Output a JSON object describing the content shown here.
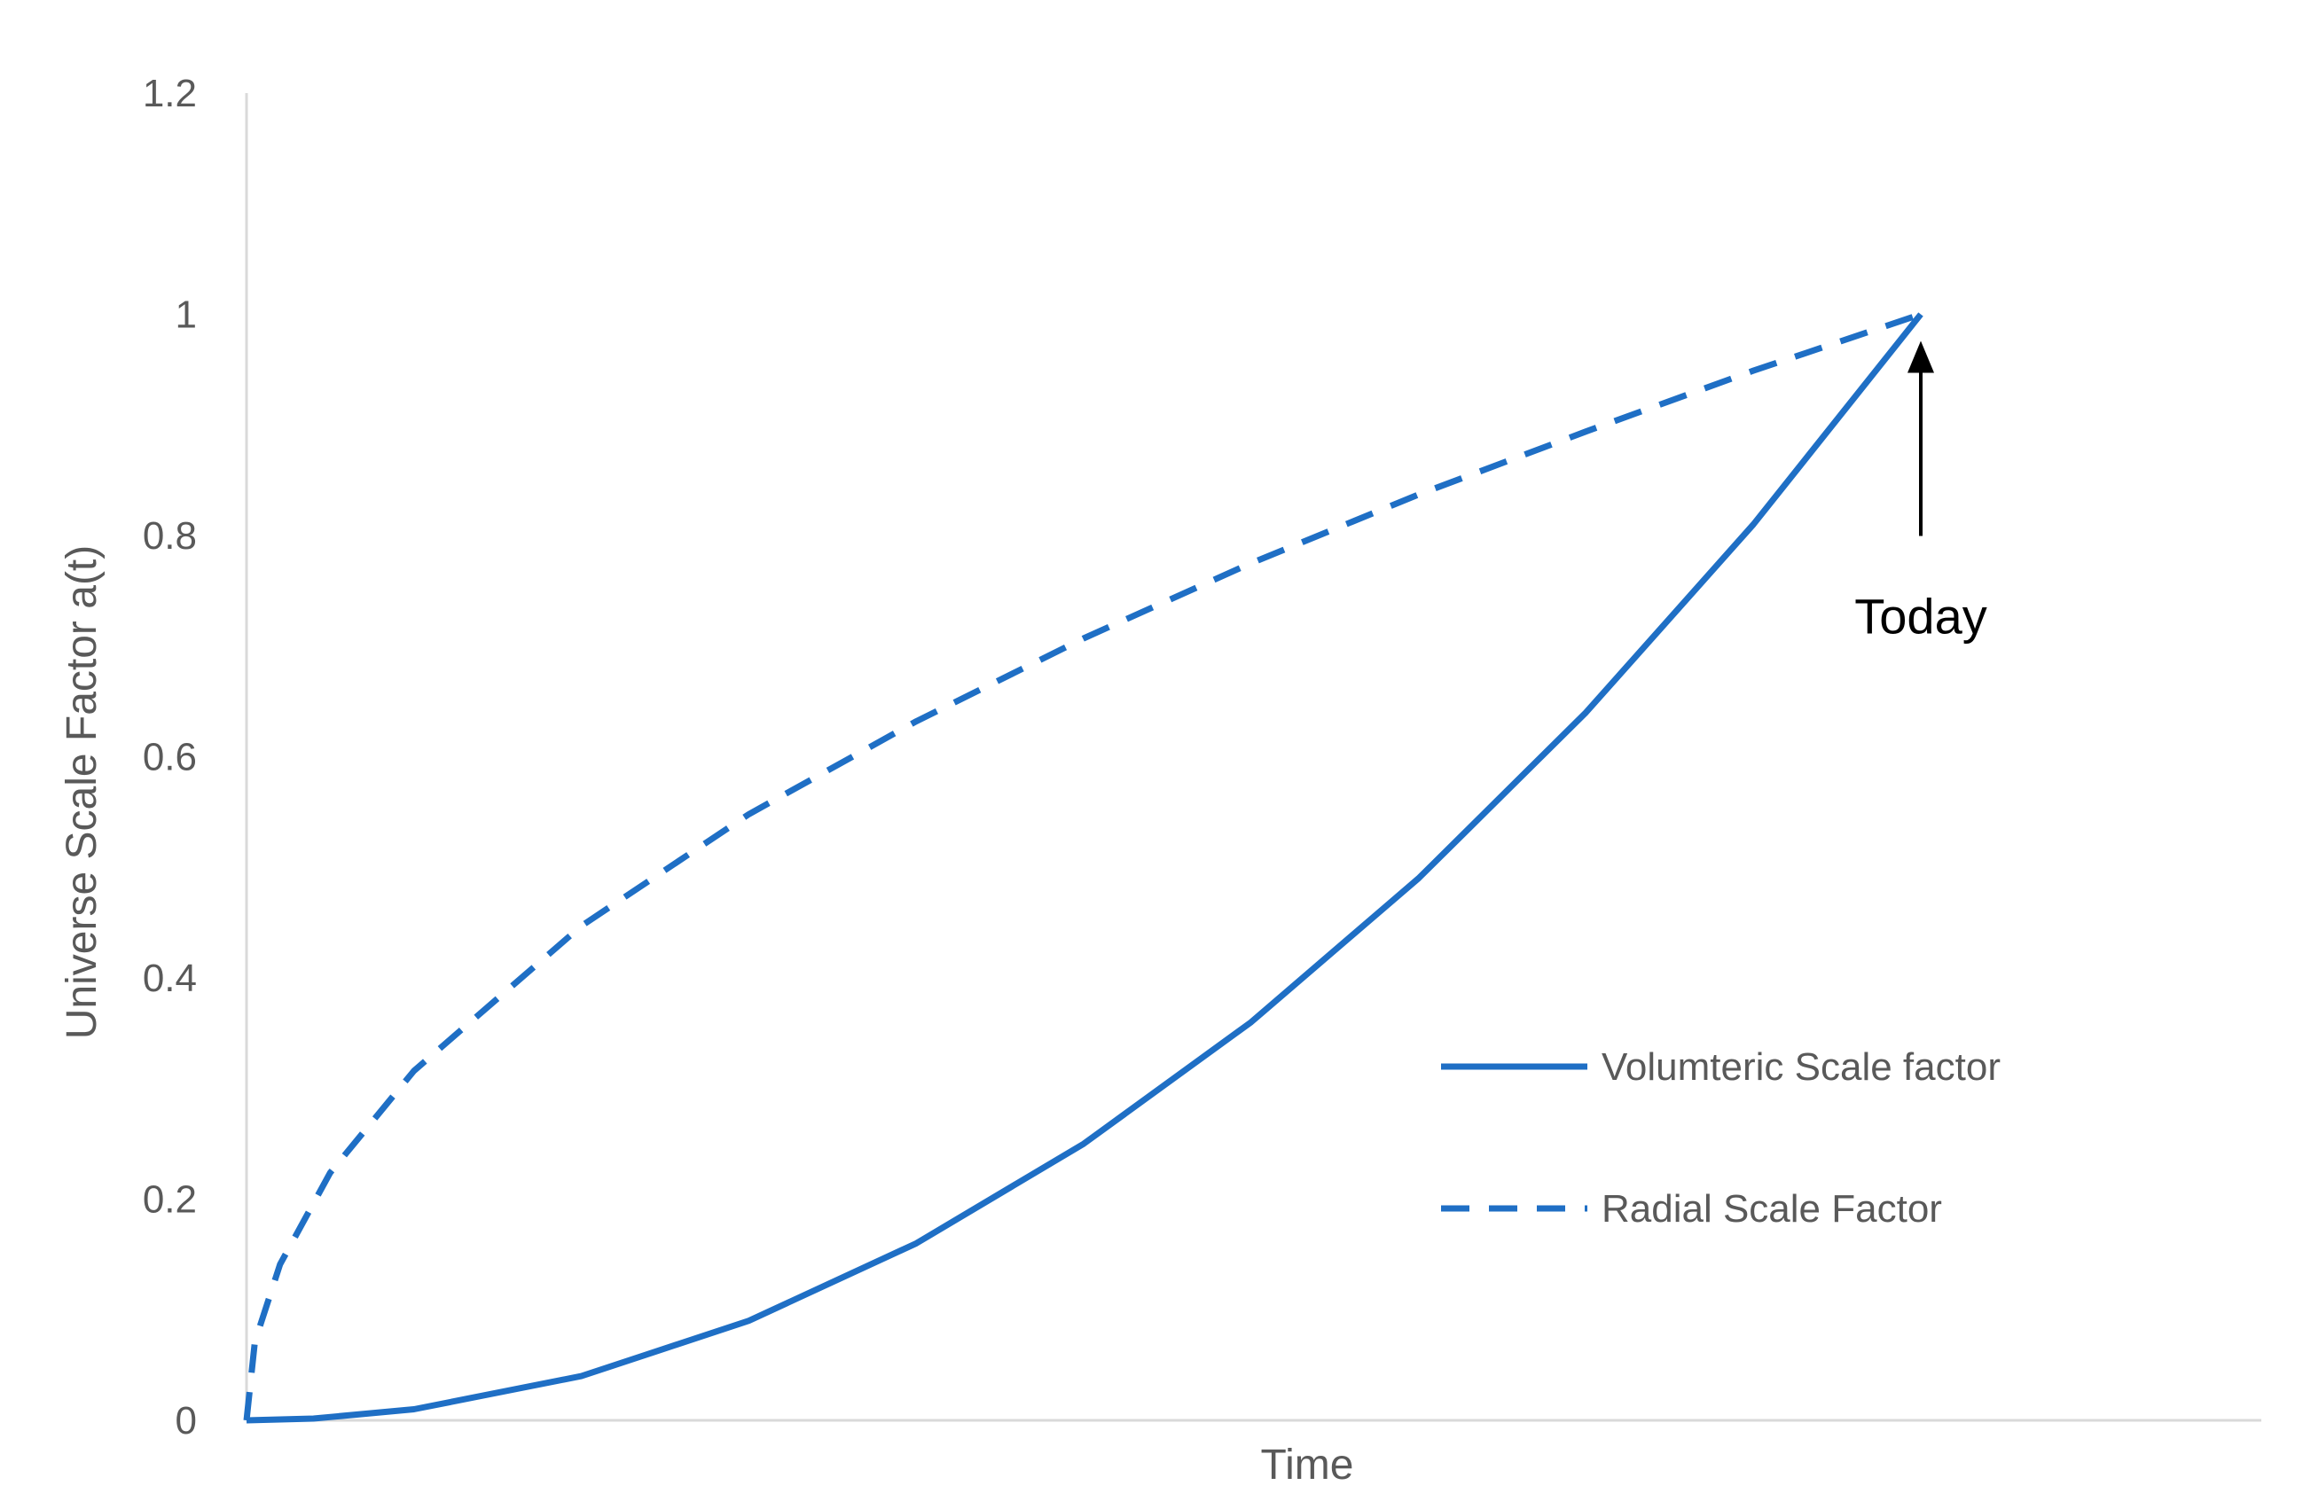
{
  "chart_data": {
    "type": "line",
    "title": "",
    "xlabel": "Time",
    "ylabel": "Universe Scale Factor a(t)",
    "x_range": [
      0,
      1.2
    ],
    "ylim": [
      0,
      1.2
    ],
    "yticks": [
      "0",
      "0.2",
      "0.4",
      "0.6",
      "0.8",
      "1",
      "1.2"
    ],
    "ytick_values": [
      0,
      0.2,
      0.4,
      0.6,
      0.8,
      1.0,
      1.2
    ],
    "grid": false,
    "legend_position": "right",
    "series": [
      {
        "name": "Volumteric Scale factor",
        "style": "solid",
        "color": "#1f6fc5",
        "x": [
          0,
          0.04,
          0.1,
          0.2,
          0.3,
          0.4,
          0.5,
          0.6,
          0.7,
          0.8,
          0.9,
          1.0
        ],
        "y": [
          0,
          0.0016,
          0.01,
          0.04,
          0.09,
          0.16,
          0.25,
          0.36,
          0.49,
          0.64,
          0.81,
          1.0
        ]
      },
      {
        "name": "Radial Scale Factor",
        "style": "dashed",
        "color": "#1f6fc5",
        "x": [
          0,
          0.005,
          0.02,
          0.05,
          0.1,
          0.2,
          0.3,
          0.4,
          0.5,
          0.6,
          0.7,
          0.8,
          0.9,
          1.0
        ],
        "y": [
          0,
          0.071,
          0.141,
          0.224,
          0.316,
          0.447,
          0.548,
          0.632,
          0.707,
          0.775,
          0.837,
          0.894,
          0.949,
          1.0
        ]
      }
    ],
    "annotation": {
      "text": "Today",
      "x": 1.0,
      "y": 1.0,
      "color": "#000000"
    }
  }
}
